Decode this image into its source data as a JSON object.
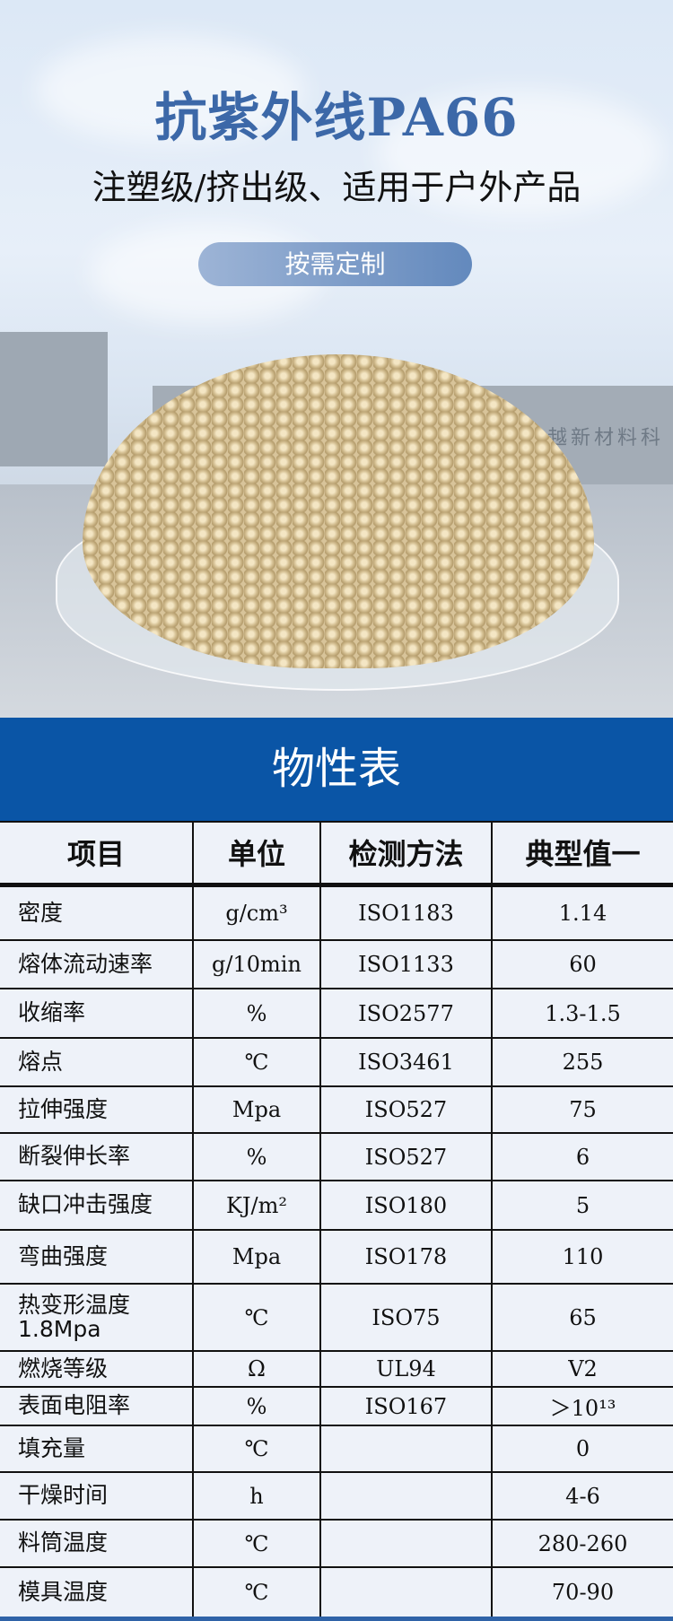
{
  "hero": {
    "title": "抗紫外线PA66",
    "subtitle": "注塑级/挤出级、适用于户外产品",
    "button": "按需定制",
    "sign_text": "越新材料科"
  },
  "section_title": "物性表",
  "table": {
    "headers": [
      "项目",
      "单位",
      "检测方法",
      "典型值一"
    ],
    "rows": [
      [
        "密度",
        "g/cm³",
        "ISO1183",
        "1.14"
      ],
      [
        "熔体流动速率",
        "g/10min",
        "ISO1133",
        "60"
      ],
      [
        "收缩率",
        "%",
        "ISO2577",
        "1.3-1.5"
      ],
      [
        "熔点",
        "℃",
        "ISO3461",
        "255"
      ],
      [
        "拉伸强度",
        "Mpa",
        "ISO527",
        "75"
      ],
      [
        "断裂伸长率",
        "%",
        "ISO527",
        "6"
      ],
      [
        "缺口冲击强度",
        "KJ/m²",
        "ISO180",
        "5"
      ],
      [
        "弯曲强度",
        "Mpa",
        "ISO178",
        "110"
      ],
      [
        "热变形温度 1.8Mpa",
        "℃",
        "ISO75",
        "65"
      ],
      [
        "燃烧等级",
        "Ω",
        "UL94",
        "V2"
      ],
      [
        "表面电阻率",
        "%",
        "ISO167",
        "＞10¹³"
      ],
      [
        "填充量",
        "℃",
        "",
        "0"
      ],
      [
        "干燥时间",
        "h",
        "",
        "4-6"
      ],
      [
        "料筒温度",
        "℃",
        "",
        "280-260"
      ],
      [
        "模具温度",
        "℃",
        "",
        "70-90"
      ]
    ]
  },
  "colors": {
    "title": "#3c68a8",
    "band": "#0a55a6",
    "table_bg": "#eef2f9"
  }
}
